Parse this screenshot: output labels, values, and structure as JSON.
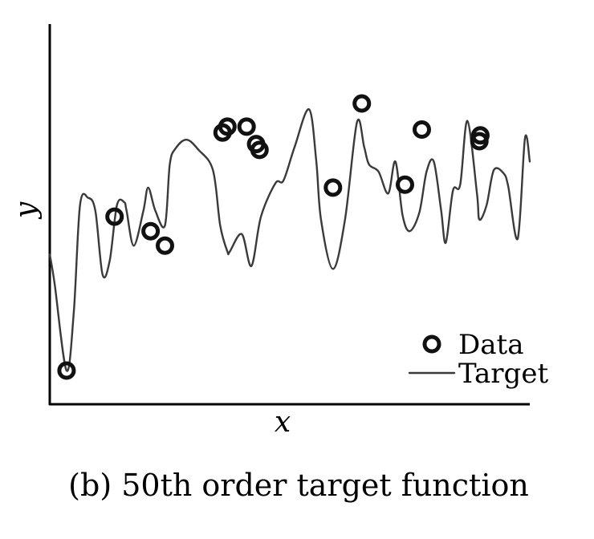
{
  "caption": "(b) 50th order target function",
  "chart_data": {
    "type": "line",
    "title": "",
    "xlabel": "x",
    "ylabel": "y",
    "xlim": [
      0,
      1
    ],
    "ylim": [
      0,
      1
    ],
    "ticks_shown": false,
    "grid": false,
    "legend": {
      "placement": "bottom-right",
      "entries": [
        {
          "label": "Data",
          "marker": "circle"
        },
        {
          "label": "Target",
          "marker": "line"
        }
      ]
    },
    "series": [
      {
        "name": "Target",
        "kind": "line",
        "color": "#3a3a3a",
        "x": [
          0.0,
          0.01,
          0.035,
          0.05,
          0.063,
          0.08,
          0.095,
          0.11,
          0.125,
          0.14,
          0.155,
          0.16,
          0.175,
          0.195,
          0.205,
          0.22,
          0.24,
          0.25,
          0.262,
          0.285,
          0.31,
          0.34,
          0.355,
          0.37,
          0.375,
          0.4,
          0.42,
          0.44,
          0.47,
          0.487,
          0.51,
          0.54,
          0.555,
          0.565,
          0.59,
          0.615,
          0.64,
          0.655,
          0.665,
          0.685,
          0.705,
          0.72,
          0.735,
          0.75,
          0.77,
          0.785,
          0.8,
          0.815,
          0.825,
          0.84,
          0.855,
          0.87,
          0.89,
          0.895,
          0.91,
          0.925,
          0.945,
          0.955,
          0.975,
          0.99,
          1.0
        ],
        "y": [
          0.4,
          0.3,
          0.0,
          0.2,
          0.57,
          0.595,
          0.55,
          0.33,
          0.38,
          0.57,
          0.58,
          0.55,
          0.43,
          0.55,
          0.63,
          0.55,
          0.5,
          0.71,
          0.765,
          0.795,
          0.76,
          0.69,
          0.5,
          0.41,
          0.41,
          0.47,
          0.36,
          0.53,
          0.645,
          0.655,
          0.77,
          0.9,
          0.725,
          0.52,
          0.35,
          0.52,
          0.855,
          0.77,
          0.71,
          0.685,
          0.61,
          0.72,
          0.535,
          0.48,
          0.545,
          0.685,
          0.72,
          0.555,
          0.44,
          0.62,
          0.64,
          0.86,
          0.61,
          0.52,
          0.57,
          0.69,
          0.68,
          0.635,
          0.455,
          0.8,
          0.72
        ]
      },
      {
        "name": "Data",
        "kind": "scatter",
        "color": "#111111",
        "x": [
          0.035,
          0.135,
          0.21,
          0.24,
          0.36,
          0.37,
          0.41,
          0.43,
          0.437,
          0.59,
          0.65,
          0.74,
          0.775,
          0.895,
          0.897
        ],
        "y": [
          0.0,
          0.53,
          0.48,
          0.43,
          0.82,
          0.84,
          0.84,
          0.78,
          0.76,
          0.63,
          0.92,
          0.64,
          0.83,
          0.79,
          0.81
        ]
      }
    ]
  }
}
